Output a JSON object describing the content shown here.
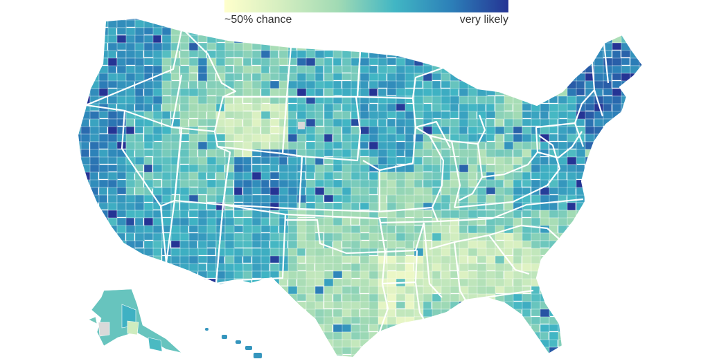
{
  "legend": {
    "low_label": "~50% chance",
    "high_label": "very likely",
    "colors": [
      "#ffffcc",
      "#d4eec0",
      "#a1dab4",
      "#41b6c4",
      "#2c7fb8",
      "#253494"
    ]
  },
  "map": {
    "no_data_color": "#d9d9d9",
    "state_border_color": "#ffffff"
  }
}
